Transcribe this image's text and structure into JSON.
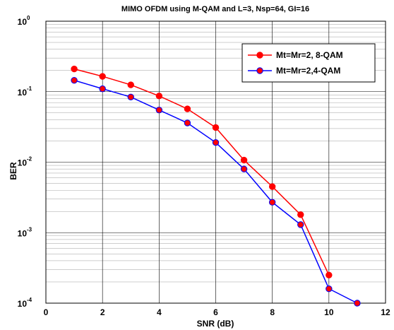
{
  "chart_data": {
    "type": "line",
    "title": "MIMO OFDM using M-QAM and L=3, Nsp=64, GI=16",
    "xlabel": "SNR (dB)",
    "ylabel": "BER",
    "xlim": [
      0,
      12
    ],
    "ylim": [
      0.0001,
      1
    ],
    "yscale": "log",
    "xticks": [
      "0",
      "2",
      "4",
      "6",
      "8",
      "10",
      "12"
    ],
    "yticks": [
      {
        "base": "10",
        "exp": "-4"
      },
      {
        "base": "10",
        "exp": "-3"
      },
      {
        "base": "10",
        "exp": "-2"
      },
      {
        "base": "10",
        "exp": "-1"
      },
      {
        "base": "10",
        "exp": "0"
      }
    ],
    "grid": true,
    "legend_position": "top-right",
    "series": [
      {
        "name": "Mt=Mr=2, 8-QAM",
        "color": "#ff0000",
        "marker_fill": "#ff0000",
        "x": [
          1,
          2,
          3,
          4,
          5,
          6,
          7,
          8,
          9,
          10
        ],
        "y": [
          0.21,
          0.165,
          0.125,
          0.087,
          0.057,
          0.031,
          0.0107,
          0.0045,
          0.0018,
          0.00025
        ]
      },
      {
        "name": "Mt=Mr=2,4-QAM",
        "color": "#0000ff",
        "marker_fill": "#ff0000",
        "x": [
          1,
          2,
          3,
          4,
          5,
          6,
          7,
          8,
          9,
          10,
          11
        ],
        "y": [
          0.145,
          0.11,
          0.084,
          0.055,
          0.036,
          0.019,
          0.008,
          0.0027,
          0.0013,
          0.00016,
          0.0001
        ]
      }
    ]
  }
}
